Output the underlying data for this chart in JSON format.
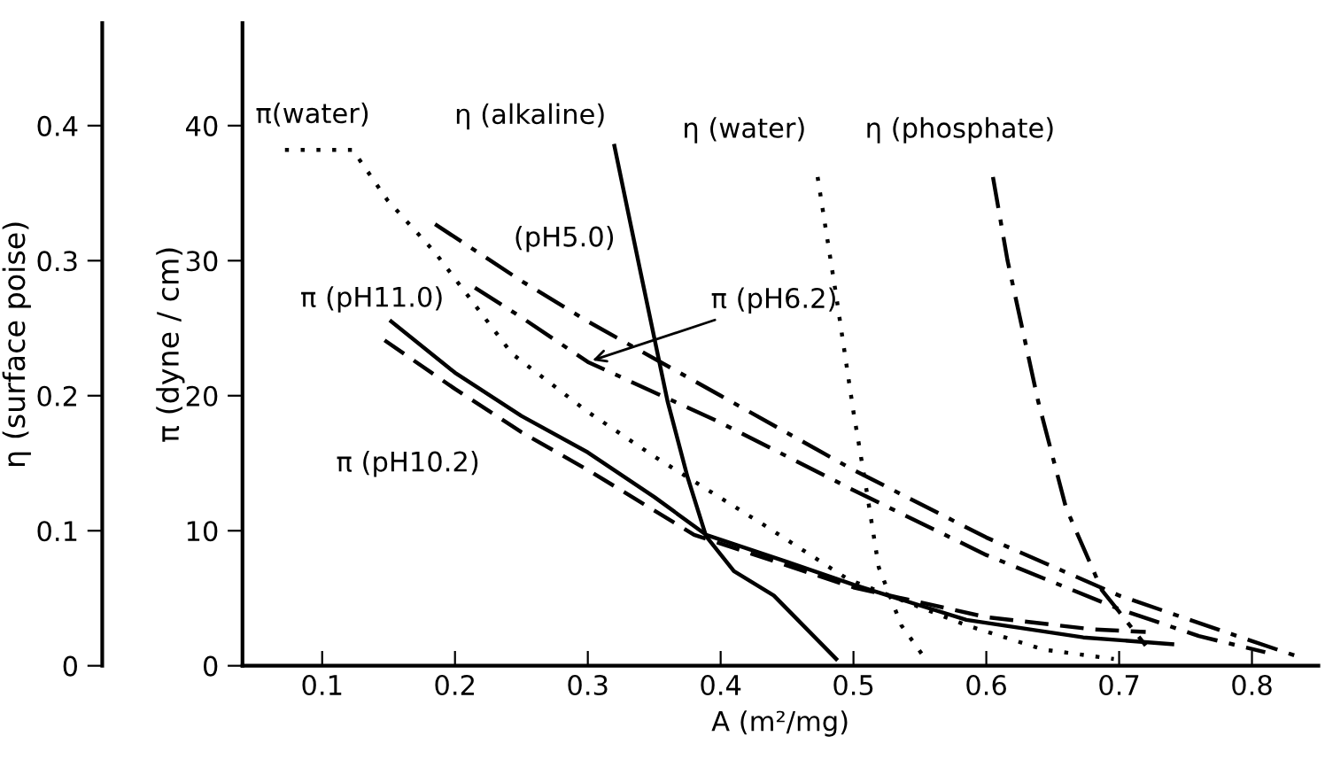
{
  "chart_data": {
    "type": "line",
    "xlabel": "A (m²/mg)",
    "ylabel": "π (dyne / cm)",
    "y2label": "η (surface poise)",
    "xlim": [
      0.04,
      0.85
    ],
    "xticks": [
      {
        "value": 0.1,
        "label": "0.1"
      },
      {
        "value": 0.2,
        "label": "0.2"
      },
      {
        "value": 0.3,
        "label": "0.3"
      },
      {
        "value": 0.4,
        "label": "0.4"
      },
      {
        "value": 0.5,
        "label": "0.5"
      },
      {
        "value": 0.6,
        "label": "0.6"
      },
      {
        "value": 0.7,
        "label": "0.7"
      },
      {
        "value": 0.8,
        "label": "0.8"
      }
    ],
    "ylim": [
      0,
      47.6
    ],
    "yticks": [
      0,
      10,
      20,
      30,
      40
    ],
    "y2lim": [
      0,
      0.476
    ],
    "y2ticks": [
      0,
      0.1,
      0.2,
      0.3,
      0.4
    ],
    "grid": false,
    "legend": false,
    "marker": "none",
    "series": [
      {
        "color": "#000000",
        "line_style": "dotted",
        "x": [
          0.072,
          0.123,
          0.149,
          0.185,
          0.243,
          0.3,
          0.35,
          0.433,
          0.496,
          0.585,
          0.643,
          0.696
        ],
        "values": [
          38.2,
          38.2,
          34.5,
          30.6,
          23.1,
          18.8,
          15.5,
          10.4,
          6.4,
          3.0,
          1.2,
          0.5
        ]
      },
      {
        "color": "#000000",
        "line_style": "dashdot",
        "x": [
          0.185,
          0.25,
          0.3,
          0.4,
          0.5,
          0.6,
          0.7,
          0.78,
          0.84
        ],
        "values": [
          32.7,
          28.5,
          25.5,
          20.0,
          14.5,
          9.5,
          5.2,
          2.5,
          0.5
        ]
      },
      {
        "color": "#000000",
        "line_style": "dashdot",
        "x": [
          0.215,
          0.25,
          0.3,
          0.4,
          0.5,
          0.6,
          0.7,
          0.76,
          0.81
        ],
        "values": [
          28.0,
          25.8,
          22.5,
          18.0,
          13.0,
          8.2,
          4.2,
          2.2,
          1.0
        ]
      },
      {
        "color": "#000000",
        "line_style": "solid",
        "x": [
          0.152,
          0.2,
          0.25,
          0.3,
          0.35,
          0.389,
          0.45,
          0.5,
          0.585,
          0.673,
          0.74
        ],
        "values": [
          25.5,
          21.7,
          18.5,
          15.8,
          12.5,
          9.7,
          7.7,
          6.0,
          3.4,
          2.1,
          1.6
        ]
      },
      {
        "color": "#000000",
        "line_style": "dashed",
        "x": [
          0.147,
          0.2,
          0.25,
          0.3,
          0.35,
          0.38,
          0.5,
          0.6,
          0.68,
          0.72
        ],
        "values": [
          24.1,
          20.5,
          17.3,
          14.5,
          11.5,
          9.7,
          5.8,
          3.6,
          2.7,
          2.5
        ]
      },
      {
        "color": "#000000",
        "line_style": "solid",
        "axis": "y2",
        "x": [
          0.32,
          0.34,
          0.36,
          0.375,
          0.389,
          0.41,
          0.44,
          0.487
        ],
        "values": [
          0.385,
          0.29,
          0.196,
          0.14,
          0.096,
          0.07,
          0.052,
          0.005
        ]
      },
      {
        "color": "#000000",
        "line_style": "dotted",
        "axis": "y2",
        "x": [
          0.473,
          0.487,
          0.5,
          0.509,
          0.519,
          0.536,
          0.552
        ],
        "values": [
          0.362,
          0.274,
          0.188,
          0.135,
          0.073,
          0.03,
          0.008
        ]
      },
      {
        "color": "#000000",
        "line_style": "dashdot",
        "axis": "y2",
        "x": [
          0.605,
          0.616,
          0.639,
          0.66,
          0.687,
          0.7,
          0.72
        ],
        "values": [
          0.362,
          0.3,
          0.196,
          0.117,
          0.056,
          0.04,
          0.015
        ]
      }
    ],
    "annotations": [
      {
        "text": "π(water)",
        "x": 0.072,
        "y": 38.2
      },
      {
        "text": "η (alkaline)",
        "x": 0.32,
        "y": 38.5
      },
      {
        "text": "η (water)",
        "x": 0.473,
        "y": 36.2
      },
      {
        "text": "η (phosphate)",
        "x": 0.605,
        "y": 36.2
      },
      "(pH5.0)",
      {
        "text": "π (pH11.0)",
        "x": 0.152,
        "y": 25.5
      },
      {
        "text": "π (pH6.2)",
        "x": 0.3,
        "y": 22.5
      },
      "π (pH10.2)"
    ]
  }
}
